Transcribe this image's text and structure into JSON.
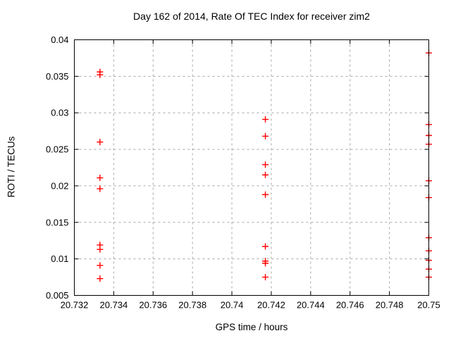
{
  "page": {
    "background": "#ffffff"
  },
  "chart_data": {
    "type": "scatter",
    "title": "Day 162 of 2014, Rate Of TEC Index for receiver zim2",
    "xlabel": "GPS time / hours",
    "ylabel": "ROTI / TECUs",
    "xlim": [
      20.732,
      20.75
    ],
    "ylim": [
      0.005,
      0.04
    ],
    "grid": true,
    "legend": "none",
    "marker": "plus",
    "colors": {
      "marker": "#ff0000",
      "grid": "#a6a6a6",
      "axis": "#000000",
      "text": "#000000"
    },
    "x_ticks": [
      {
        "value": 20.732,
        "label": "20.732"
      },
      {
        "value": 20.734,
        "label": "20.734"
      },
      {
        "value": 20.736,
        "label": "20.736"
      },
      {
        "value": 20.738,
        "label": "20.738"
      },
      {
        "value": 20.74,
        "label": "20.74"
      },
      {
        "value": 20.742,
        "label": "20.742"
      },
      {
        "value": 20.744,
        "label": "20.744"
      },
      {
        "value": 20.746,
        "label": "20.746"
      },
      {
        "value": 20.748,
        "label": "20.748"
      },
      {
        "value": 20.75,
        "label": "20.75"
      }
    ],
    "y_ticks": [
      {
        "value": 0.005,
        "label": "0.005"
      },
      {
        "value": 0.01,
        "label": "0.01"
      },
      {
        "value": 0.015,
        "label": "0.015"
      },
      {
        "value": 0.02,
        "label": "0.02"
      },
      {
        "value": 0.025,
        "label": "0.025"
      },
      {
        "value": 0.03,
        "label": "0.03"
      },
      {
        "value": 0.035,
        "label": "0.035"
      },
      {
        "value": 0.04,
        "label": "0.04"
      }
    ],
    "series": [
      {
        "name": "ROTI",
        "points": [
          [
            20.7333,
            0.0356
          ],
          [
            20.7333,
            0.0352
          ],
          [
            20.7333,
            0.026
          ],
          [
            20.7333,
            0.0211
          ],
          [
            20.7333,
            0.0196
          ],
          [
            20.7333,
            0.0119
          ],
          [
            20.7333,
            0.0113
          ],
          [
            20.7333,
            0.0091
          ],
          [
            20.7333,
            0.0073
          ],
          [
            20.7417,
            0.0291
          ],
          [
            20.7417,
            0.0268
          ],
          [
            20.7417,
            0.0229
          ],
          [
            20.7417,
            0.0215
          ],
          [
            20.7417,
            0.0188
          ],
          [
            20.7417,
            0.0117
          ],
          [
            20.7417,
            0.0097
          ],
          [
            20.7417,
            0.0094
          ],
          [
            20.7417,
            0.0075
          ],
          [
            20.75,
            0.0382
          ],
          [
            20.75,
            0.0284
          ],
          [
            20.75,
            0.0269
          ],
          [
            20.75,
            0.0257
          ],
          [
            20.75,
            0.0207
          ],
          [
            20.75,
            0.0184
          ],
          [
            20.75,
            0.0129
          ],
          [
            20.75,
            0.0111
          ],
          [
            20.75,
            0.0098
          ],
          [
            20.75,
            0.0086
          ],
          [
            20.75,
            0.0075
          ]
        ]
      }
    ]
  }
}
